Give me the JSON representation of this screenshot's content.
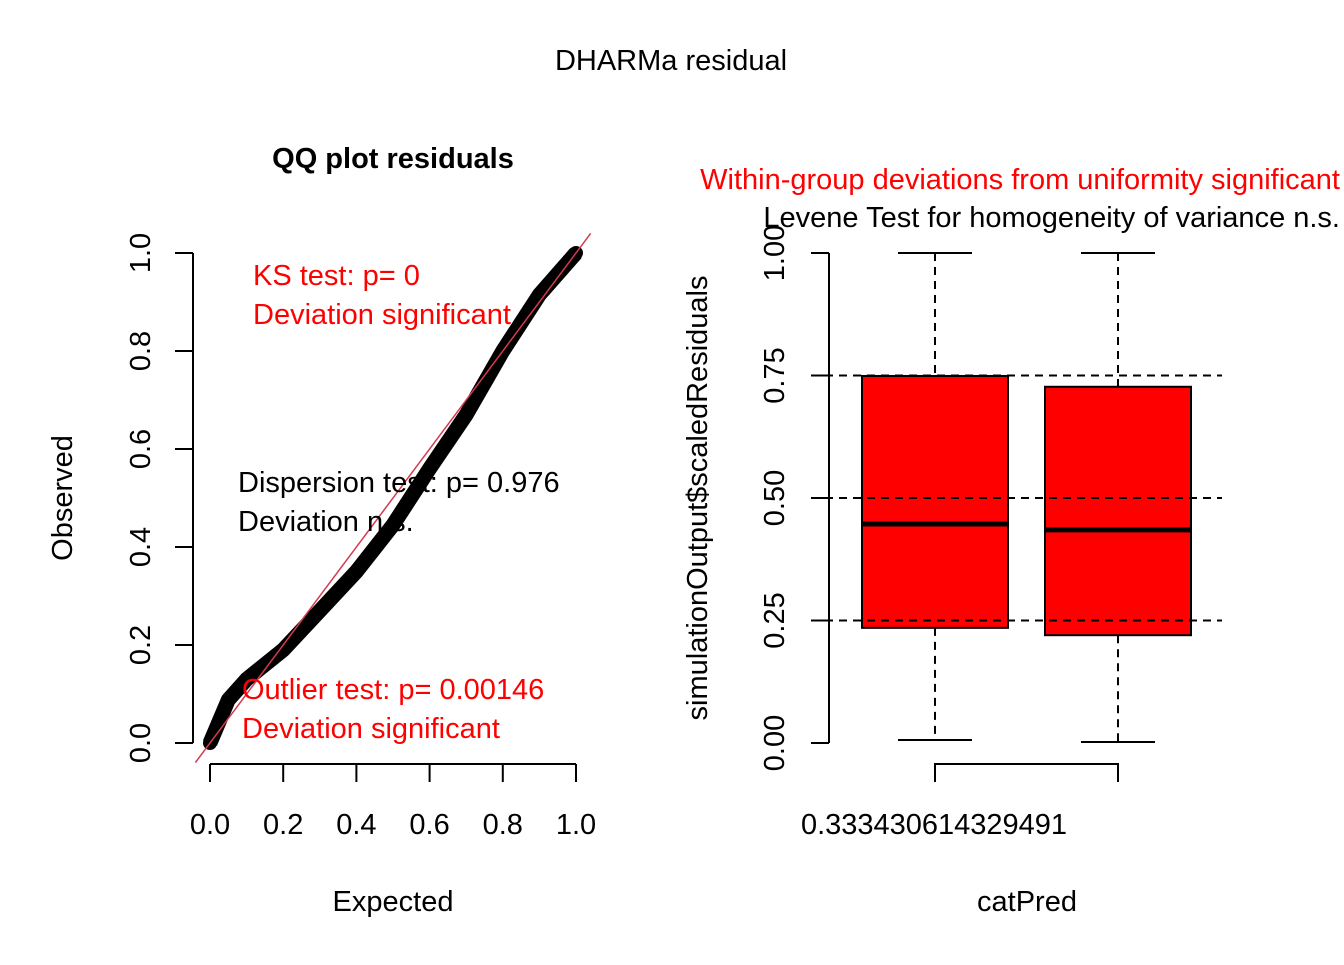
{
  "main_title": "DHARMa residual",
  "chart_data": [
    {
      "type": "scatter",
      "title": "QQ plot residuals",
      "xlabel": "Expected",
      "ylabel": "Observed",
      "xlim": [
        0,
        1
      ],
      "ylim": [
        0,
        1
      ],
      "xticks": [
        "0.0",
        "0.2",
        "0.4",
        "0.6",
        "0.8",
        "1.0"
      ],
      "yticks": [
        "0.0",
        "0.2",
        "0.4",
        "0.6",
        "0.8",
        "1.0"
      ],
      "x": [
        0.0,
        0.05,
        0.1,
        0.2,
        0.3,
        0.4,
        0.5,
        0.6,
        0.7,
        0.8,
        0.9,
        1.0
      ],
      "y": [
        0.0,
        0.088,
        0.13,
        0.19,
        0.27,
        0.35,
        0.445,
        0.56,
        0.67,
        0.8,
        0.915,
        1.0
      ],
      "reference_line": "y = x",
      "reference_color": "#d7394f",
      "grid": false,
      "annotations": {
        "ks_test": "KS test: p= 0",
        "ks_result": "Deviation  significant",
        "dispersion_test": "Dispersion test: p= 0.976",
        "dispersion_result": "Deviation  n.s.",
        "outlier_test": "Outlier test: p= 0.00146",
        "outlier_result": "Deviation  significant"
      },
      "colors": {
        "significant": "#ff0000",
        "ns": "#000000",
        "points": "#000000"
      }
    },
    {
      "type": "boxplot",
      "title_line1": "Within-group deviations from uniformity significant",
      "title_line2": "Levene Test for homogeneity of variance n.s.",
      "xlabel": "catPred",
      "ylabel": "simulationOutput$scaledResiduals",
      "ylim": [
        0,
        1
      ],
      "yticks": [
        "0.00",
        "0.25",
        "0.50",
        "0.75",
        "1.00"
      ],
      "gridlines_y": [
        0.25,
        0.5,
        0.75
      ],
      "x_tick_label": "0.333430614329491",
      "boxes": [
        {
          "min": 0.006,
          "q1": 0.235,
          "median": 0.447,
          "q3": 0.749,
          "max": 1.0
        },
        {
          "min": 0.002,
          "q1": 0.22,
          "median": 0.435,
          "q3": 0.727,
          "max": 1.0
        }
      ],
      "box_color": "#ff0000",
      "colors": {
        "title_line1": "#ff0000",
        "title_line2": "#000000"
      }
    }
  ]
}
